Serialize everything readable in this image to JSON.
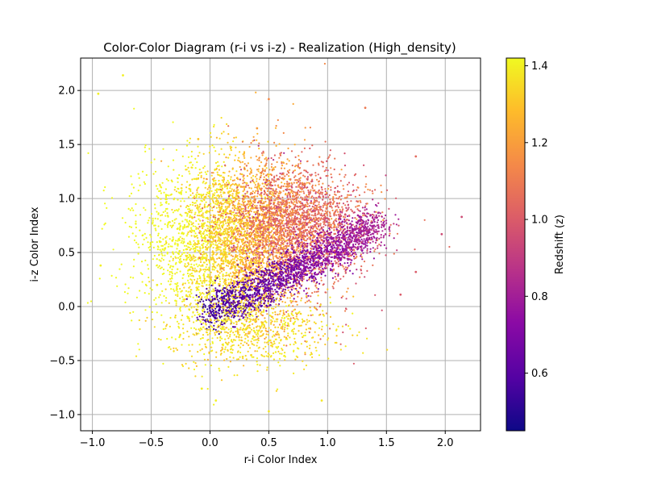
{
  "chart_data": {
    "type": "scatter",
    "title": "Color-Color Diagram (r-i vs i-z) - Realization (High_density)",
    "xlabel": "r-i Color Index",
    "ylabel": "i-z Color Index",
    "xlim": [
      -1.1,
      2.3
    ],
    "ylim": [
      -1.15,
      2.3
    ],
    "x_ticks": [
      -1.0,
      -0.5,
      0.0,
      0.5,
      1.0,
      1.5,
      2.0
    ],
    "x_tick_labels": [
      "−1.0",
      "−0.5",
      "0.0",
      "0.5",
      "1.0",
      "1.5",
      "2.0"
    ],
    "y_ticks": [
      -1.0,
      -0.5,
      0.0,
      0.5,
      1.0,
      1.5,
      2.0
    ],
    "y_tick_labels": [
      "−1.0",
      "−0.5",
      "0.0",
      "0.5",
      "1.0",
      "1.5",
      "2.0"
    ],
    "grid": true,
    "colormap": "plasma",
    "colorbar": {
      "label": "Redshift (z)",
      "range": [
        0.45,
        1.42
      ],
      "ticks": [
        0.6,
        0.8,
        1.0,
        1.2,
        1.4
      ],
      "tick_labels": [
        "0.6",
        "0.8",
        "1.0",
        "1.2",
        "1.4"
      ]
    },
    "points": [
      {
        "x": -0.32,
        "y": 0.61,
        "z": 1.4
      },
      {
        "x": -0.15,
        "y": 0.82,
        "z": 1.35
      },
      {
        "x": -0.05,
        "y": 0.45,
        "z": 1.38
      },
      {
        "x": 0.1,
        "y": 0.95,
        "z": 1.25
      },
      {
        "x": 0.25,
        "y": 0.7,
        "z": 1.22
      },
      {
        "x": 0.35,
        "y": 1.05,
        "z": 1.18
      },
      {
        "x": 0.45,
        "y": 0.85,
        "z": 1.15
      },
      {
        "x": 0.6,
        "y": 1.1,
        "z": 1.12
      },
      {
        "x": 0.7,
        "y": 0.9,
        "z": 1.08
      },
      {
        "x": 0.85,
        "y": 1.05,
        "z": 1.05
      },
      {
        "x": 1.0,
        "y": 0.95,
        "z": 1.02
      },
      {
        "x": 1.15,
        "y": 0.85,
        "z": 0.98
      },
      {
        "x": 0.05,
        "y": -0.05,
        "z": 0.55
      },
      {
        "x": 0.2,
        "y": 0.05,
        "z": 0.6
      },
      {
        "x": 0.4,
        "y": 0.15,
        "z": 0.65
      },
      {
        "x": 0.6,
        "y": 0.25,
        "z": 0.7
      },
      {
        "x": 0.8,
        "y": 0.35,
        "z": 0.75
      },
      {
        "x": 1.0,
        "y": 0.45,
        "z": 0.78
      },
      {
        "x": 1.2,
        "y": 0.6,
        "z": 0.8
      },
      {
        "x": 1.35,
        "y": 0.7,
        "z": 0.82
      },
      {
        "x": -0.45,
        "y": 0.2,
        "z": 1.4
      },
      {
        "x": -0.2,
        "y": 0.1,
        "z": 1.38
      },
      {
        "x": 0.15,
        "y": -0.35,
        "z": 1.36
      },
      {
        "x": 0.35,
        "y": -0.45,
        "z": 1.35
      },
      {
        "x": -0.1,
        "y": 1.55,
        "z": 1.3
      },
      {
        "x": 0.4,
        "y": 1.65,
        "z": 1.2
      },
      {
        "x": -0.95,
        "y": 1.97,
        "z": 1.4
      },
      {
        "x": -0.74,
        "y": 2.14,
        "z": 1.4
      },
      {
        "x": 0.5,
        "y": 1.92,
        "z": 1.15
      },
      {
        "x": 1.32,
        "y": 1.84,
        "z": 1.1
      },
      {
        "x": 2.14,
        "y": 0.83,
        "z": 0.95
      },
      {
        "x": 1.97,
        "y": 0.67,
        "z": 0.95
      },
      {
        "x": 0.5,
        "y": -0.97,
        "z": 1.38
      },
      {
        "x": -0.07,
        "y": -0.76,
        "z": 1.4
      },
      {
        "x": 0.05,
        "y": -0.87,
        "z": 1.4
      },
      {
        "x": 0.95,
        "y": -0.87,
        "z": 1.38
      },
      {
        "x": -0.93,
        "y": 0.38,
        "z": 1.4
      },
      {
        "x": 1.75,
        "y": 1.39,
        "z": 1.05
      },
      {
        "x": 1.62,
        "y": 0.11,
        "z": 1.0
      },
      {
        "x": 1.75,
        "y": 0.32,
        "z": 1.0
      }
    ]
  }
}
